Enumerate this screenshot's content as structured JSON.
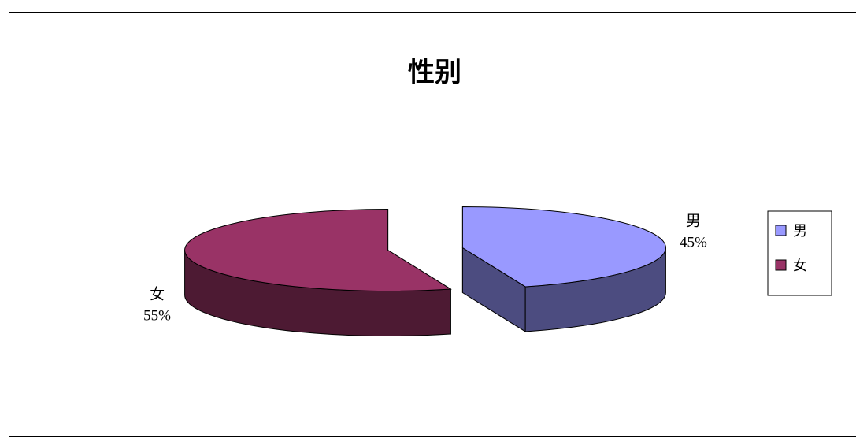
{
  "chart_data": {
    "type": "pie",
    "style": "3d-exploded",
    "title": "性别",
    "slices": [
      {
        "name": "男",
        "value": 45,
        "percent_label": "45%",
        "color": "#9999ff",
        "side_color": "#4c4c80"
      },
      {
        "name": "女",
        "value": 55,
        "percent_label": "55%",
        "color": "#993366",
        "side_color": "#4d1a33"
      }
    ],
    "legend": {
      "placement": "right",
      "entries": [
        "男",
        "女"
      ]
    },
    "data_labels": "category-and-percent"
  }
}
